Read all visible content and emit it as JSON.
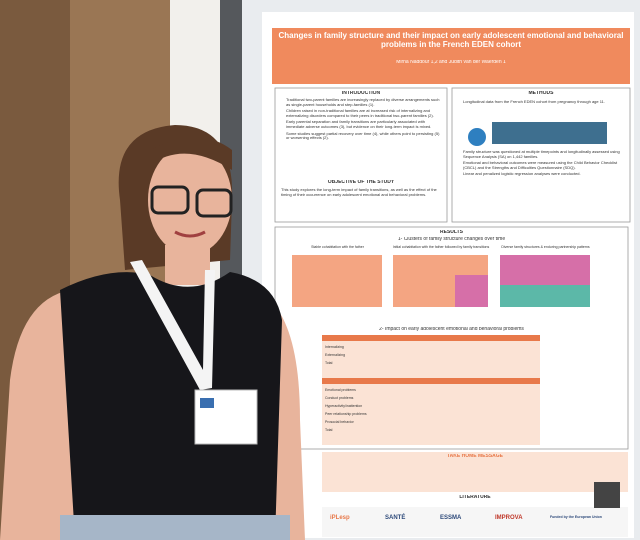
{
  "poster": {
    "title": "Changes in family structure and their impact on early adolescent emotional and behavioral problems in the French EDEN cohort",
    "authors": "Mirna Naddour 1,2 and Judith van der Waerden 1",
    "introduction": {
      "heading": "INTRODUCTION",
      "bullets": [
        "Traditional two-parent families are increasingly replaced by diverse arrangements such as single-parent households and step-families (1).",
        "Children raised in non-traditional families are at increased risk of internalizing and externalizing disorders compared to their peers in traditional two-parent families (2).",
        "Early parental separation and family transitions are particularly associated with immediate adverse outcomes (3), but evidence on their long-term impact is mixed.",
        "Some studies suggest partial recovery over time (4), while others point to persisting (5) or worsening effects (2)."
      ]
    },
    "objective": {
      "heading": "OBJECTIVE OF THE STUDY",
      "text": "This study explores the long-term impact of family transitions, as well as the effect of the timing of their occurrence on early adolescent emotional and behavioral problems."
    },
    "methods": {
      "heading": "METHODS",
      "bullets": [
        "Longitudinal data from the French EDEN cohort from pregnancy through age 11.",
        "Family structure was questioned at multiple timepoints and longitudinally assessed using Sequence Analysis (SA) on 1,442 families.",
        "Emotional and behavioral outcomes were measured using the Child Behavior Checklist (CBCL) and the Strengths and Difficulties Questionnaire (SDQ).",
        "Linear and penalized logistic regression analyses were conducted."
      ]
    },
    "results": {
      "heading": "RESULTS",
      "sub1": "1- Clusters of family structure changes over time",
      "sub2": "2- Impact on early adolescent emotional and behavioral problems",
      "clusters": [
        "Stable cohabitation with the father",
        "Initial cohabitation with the father followed by family transitions",
        "Diverse family structures & enduring partnership patterns"
      ],
      "rows": [
        "Internalizing",
        "Externalizing",
        "Total",
        "Emotional problems",
        "Conduct problems",
        "Hyperactivity/inattention",
        "Peer relationship problems",
        "Prosocial behavior",
        "Total"
      ]
    },
    "conclusion": {
      "heading": "TAKE HOME MESSAGE"
    },
    "literature": {
      "heading": "LITERATURE"
    },
    "logos": [
      "iPLesp",
      "SANTÉ",
      "ESSMA",
      "IMPROVA",
      "Funded by the European Union"
    ]
  }
}
